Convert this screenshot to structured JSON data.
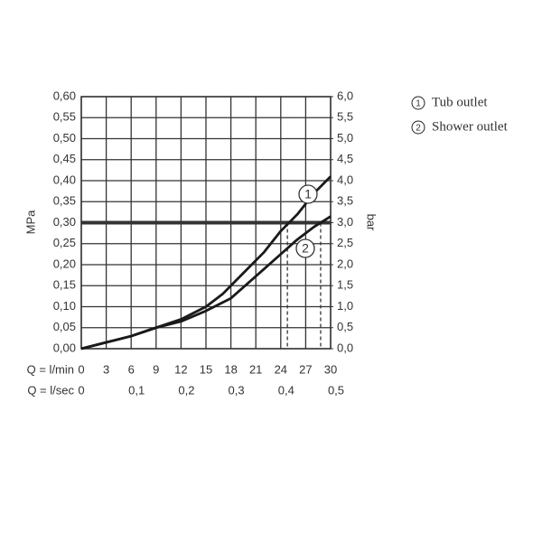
{
  "chart_data": {
    "type": "line",
    "y_label": "MPa",
    "y2_label": "bar",
    "x_label": "Q = l/min",
    "x2_label": "Q = l/sec",
    "x": [
      0,
      3,
      6,
      9,
      12,
      15,
      17,
      18,
      20,
      22,
      24,
      26,
      28,
      30
    ],
    "series": [
      {
        "name": "Tub outlet",
        "marker": "1",
        "color": "#1a1a1a",
        "values": [
          0,
          0.015,
          0.03,
          0.05,
          0.07,
          0.1,
          0.13,
          0.15,
          0.19,
          0.23,
          0.28,
          0.32,
          0.37,
          0.41
        ]
      },
      {
        "name": "Shower outlet",
        "marker": "2",
        "color": "#1a1a1a",
        "values": [
          0,
          0.015,
          0.03,
          0.05,
          0.065,
          0.09,
          0.11,
          0.12,
          0.155,
          0.19,
          0.225,
          0.26,
          0.29,
          0.315
        ]
      }
    ],
    "xlim": [
      0,
      30
    ],
    "xticks": [
      0,
      3,
      6,
      9,
      12,
      15,
      18,
      21,
      24,
      27,
      30
    ],
    "x2lim": [
      0,
      0.5
    ],
    "x2ticks": [
      0,
      {
        "value": 0.1,
        "label": "0,1"
      },
      {
        "value": 0.2,
        "label": "0,2"
      },
      {
        "value": 0.3,
        "label": "0,3"
      },
      {
        "value": 0.4,
        "label": "0,4"
      },
      {
        "value": 0.5,
        "label": "0,5"
      }
    ],
    "ylim": [
      0,
      0.6
    ],
    "yticks": [
      {
        "value": 0,
        "label": "0,00"
      },
      {
        "value": 0.05,
        "label": "0,05"
      },
      {
        "value": 0.1,
        "label": "0,10"
      },
      {
        "value": 0.15,
        "label": "0,15"
      },
      {
        "value": 0.2,
        "label": "0,20"
      },
      {
        "value": 0.25,
        "label": "0,25"
      },
      {
        "value": 0.3,
        "label": "0,30"
      },
      {
        "value": 0.35,
        "label": "0,35"
      },
      {
        "value": 0.4,
        "label": "0,40"
      },
      {
        "value": 0.45,
        "label": "0,45"
      },
      {
        "value": 0.5,
        "label": "0,50"
      },
      {
        "value": 0.55,
        "label": "0,55"
      },
      {
        "value": 0.6,
        "label": "0,60"
      }
    ],
    "y2lim": [
      0,
      6
    ],
    "y2ticks": [
      {
        "value": 0,
        "label": "0,0"
      },
      {
        "value": 0.5,
        "label": "0,5"
      },
      {
        "value": 1,
        "label": "1,0"
      },
      {
        "value": 1.5,
        "label": "1,5"
      },
      {
        "value": 2,
        "label": "2,0"
      },
      {
        "value": 2.5,
        "label": "2,5"
      },
      {
        "value": 3,
        "label": "3,0"
      },
      {
        "value": 3.5,
        "label": "3,5"
      },
      {
        "value": 4,
        "label": "4,0"
      },
      {
        "value": 4.5,
        "label": "4,5"
      },
      {
        "value": 5,
        "label": "5,0"
      },
      {
        "value": 5.5,
        "label": "5,5"
      },
      {
        "value": 6,
        "label": "6,0"
      }
    ],
    "reference_y": 0.3,
    "drop_lines_x": [
      24.8,
      28.8
    ],
    "grid": true
  }
}
